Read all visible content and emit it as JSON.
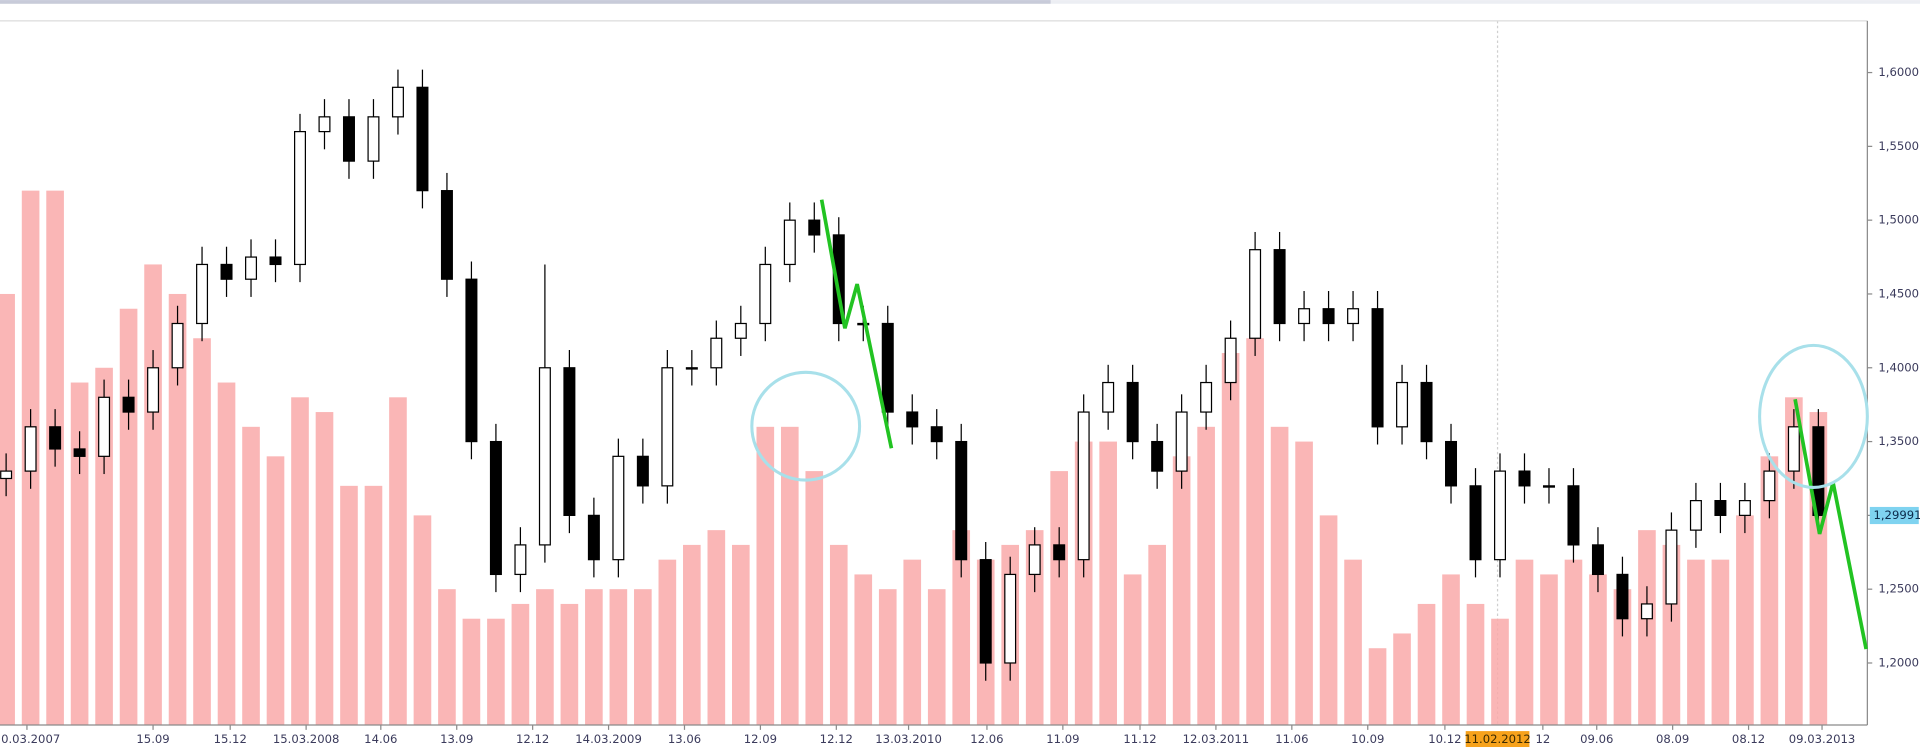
{
  "chart_data": {
    "type": "candlestick",
    "xlim": [
      -0.25,
      76.0
    ],
    "ylim": [
      1.158,
      1.635
    ],
    "yticks": [
      {
        "value": 1.2,
        "label": "1,2000"
      },
      {
        "value": 1.25,
        "label": "1,2500"
      },
      {
        "value": 1.3,
        "label": "1,3000"
      },
      {
        "value": 1.35,
        "label": "1,3500"
      },
      {
        "value": 1.4,
        "label": "1,4000"
      },
      {
        "value": 1.45,
        "label": "1,4500"
      },
      {
        "value": 1.5,
        "label": "1,5000"
      },
      {
        "value": 1.55,
        "label": "1,5500"
      },
      {
        "value": 1.6,
        "label": "1,6000"
      }
    ],
    "xticks": [
      {
        "value": 0.85,
        "label": "10.03.2007"
      },
      {
        "value": 6,
        "label": "15.09"
      },
      {
        "value": 9.15,
        "label": "15.12"
      },
      {
        "value": 12.25,
        "label": "15.03.2008"
      },
      {
        "value": 15.3,
        "label": "14.06"
      },
      {
        "value": 18.4,
        "label": "13.09"
      },
      {
        "value": 21.5,
        "label": "12.12"
      },
      {
        "value": 24.6,
        "label": "14.03.2009"
      },
      {
        "value": 27.7,
        "label": "13.06"
      },
      {
        "value": 30.8,
        "label": "12.09"
      },
      {
        "value": 33.9,
        "label": "12.12"
      },
      {
        "value": 36.85,
        "label": "13.03.2010"
      },
      {
        "value": 40.05,
        "label": "12.06"
      },
      {
        "value": 43.15,
        "label": "11.09"
      },
      {
        "value": 46.3,
        "label": "11.12"
      },
      {
        "value": 49.4,
        "label": "12.03.2011"
      },
      {
        "value": 52.5,
        "label": "11.06"
      },
      {
        "value": 55.6,
        "label": "10.09"
      },
      {
        "value": 58.75,
        "label": "10.12"
      },
      {
        "value": 62.75,
        "label": "12"
      },
      {
        "value": 64.95,
        "label": "09.06"
      },
      {
        "value": 68.05,
        "label": "08.09"
      },
      {
        "value": 71.15,
        "label": "08.12"
      },
      {
        "value": 74.15,
        "label": "09.03.2013"
      }
    ],
    "cursor": {
      "value": 60.9,
      "label": "11.02.2012",
      "color": "#f7a21b"
    },
    "last_price": {
      "value": 1.29991,
      "label": "1,29991",
      "color": "#7fd3f0"
    },
    "up_color": "#ffffff",
    "down_color": "#000000",
    "open": [
      1.325,
      1.33,
      1.36,
      1.345,
      1.34,
      1.38,
      1.37,
      1.4,
      1.43,
      1.47,
      1.46,
      1.475,
      1.47,
      1.56,
      1.57,
      1.54,
      1.57,
      1.59,
      1.52,
      1.46,
      1.35,
      1.26,
      1.28,
      1.4,
      1.3,
      1.27,
      1.34,
      1.32,
      1.4,
      1.4,
      1.42,
      1.43,
      1.47,
      1.5,
      1.49,
      1.43,
      1.43,
      1.37,
      1.36,
      1.35,
      1.27,
      1.2,
      1.26,
      1.28,
      1.27,
      1.37,
      1.39,
      1.35,
      1.33,
      1.37,
      1.39,
      1.42,
      1.48,
      1.43,
      1.44,
      1.43,
      1.44,
      1.36,
      1.39,
      1.35,
      1.32,
      1.27,
      1.33,
      1.32,
      1.32,
      1.28,
      1.26,
      1.23,
      1.24,
      1.29,
      1.31,
      1.3,
      1.31,
      1.33,
      1.36
    ],
    "high": [
      1.342,
      1.372,
      1.372,
      1.357,
      1.392,
      1.392,
      1.412,
      1.442,
      1.482,
      1.482,
      1.487,
      1.487,
      1.572,
      1.582,
      1.582,
      1.582,
      1.602,
      1.602,
      1.532,
      1.472,
      1.362,
      1.292,
      1.47,
      1.412,
      1.312,
      1.352,
      1.352,
      1.412,
      1.412,
      1.432,
      1.442,
      1.482,
      1.512,
      1.512,
      1.502,
      1.442,
      1.442,
      1.382,
      1.372,
      1.362,
      1.282,
      1.272,
      1.292,
      1.292,
      1.382,
      1.402,
      1.402,
      1.362,
      1.382,
      1.402,
      1.432,
      1.492,
      1.492,
      1.452,
      1.452,
      1.452,
      1.452,
      1.402,
      1.402,
      1.362,
      1.332,
      1.342,
      1.342,
      1.332,
      1.332,
      1.292,
      1.272,
      1.252,
      1.302,
      1.322,
      1.322,
      1.322,
      1.342,
      1.372,
      1.372
    ],
    "low": [
      1.313,
      1.318,
      1.333,
      1.328,
      1.328,
      1.358,
      1.358,
      1.388,
      1.418,
      1.448,
      1.448,
      1.458,
      1.458,
      1.548,
      1.528,
      1.528,
      1.558,
      1.508,
      1.448,
      1.338,
      1.248,
      1.248,
      1.268,
      1.288,
      1.258,
      1.258,
      1.308,
      1.308,
      1.388,
      1.388,
      1.408,
      1.418,
      1.458,
      1.478,
      1.418,
      1.418,
      1.358,
      1.348,
      1.338,
      1.258,
      1.188,
      1.188,
      1.248,
      1.258,
      1.258,
      1.358,
      1.338,
      1.318,
      1.318,
      1.358,
      1.378,
      1.408,
      1.418,
      1.418,
      1.418,
      1.418,
      1.348,
      1.348,
      1.338,
      1.308,
      1.258,
      1.258,
      1.308,
      1.308,
      1.268,
      1.248,
      1.218,
      1.218,
      1.228,
      1.278,
      1.288,
      1.288,
      1.298,
      1.318,
      1.288
    ],
    "close": [
      1.33,
      1.36,
      1.345,
      1.34,
      1.38,
      1.37,
      1.4,
      1.43,
      1.47,
      1.46,
      1.475,
      1.47,
      1.56,
      1.57,
      1.54,
      1.57,
      1.59,
      1.52,
      1.46,
      1.35,
      1.26,
      1.28,
      1.4,
      1.3,
      1.27,
      1.34,
      1.32,
      1.4,
      1.4,
      1.42,
      1.43,
      1.47,
      1.5,
      1.49,
      1.43,
      1.43,
      1.37,
      1.36,
      1.35,
      1.27,
      1.2,
      1.26,
      1.28,
      1.27,
      1.37,
      1.39,
      1.35,
      1.33,
      1.37,
      1.39,
      1.42,
      1.48,
      1.43,
      1.44,
      1.43,
      1.44,
      1.36,
      1.39,
      1.35,
      1.32,
      1.27,
      1.33,
      1.32,
      1.32,
      1.28,
      1.26,
      1.23,
      1.24,
      1.29,
      1.31,
      1.3,
      1.31,
      1.33,
      1.36,
      1.3
    ],
    "volume": {
      "color": "#f9a9a9",
      "values": [
        1.45,
        1.52,
        1.52,
        1.39,
        1.4,
        1.44,
        1.47,
        1.45,
        1.42,
        1.39,
        1.36,
        1.34,
        1.38,
        1.37,
        1.32,
        1.32,
        1.38,
        1.3,
        1.25,
        1.23,
        1.23,
        1.24,
        1.25,
        1.24,
        1.25,
        1.25,
        1.25,
        1.27,
        1.28,
        1.29,
        1.28,
        1.36,
        1.36,
        1.33,
        1.28,
        1.26,
        1.25,
        1.27,
        1.25,
        1.29,
        1.27,
        1.28,
        1.29,
        1.33,
        1.35,
        1.35,
        1.26,
        1.28,
        1.34,
        1.36,
        1.41,
        1.42,
        1.36,
        1.35,
        1.3,
        1.27,
        1.21,
        1.22,
        1.24,
        1.26,
        1.24,
        1.23,
        1.27,
        1.26,
        1.27,
        1.26,
        1.25,
        1.29,
        1.28,
        1.27,
        1.27,
        1.3,
        1.34,
        1.38,
        1.37
      ]
    }
  }
}
